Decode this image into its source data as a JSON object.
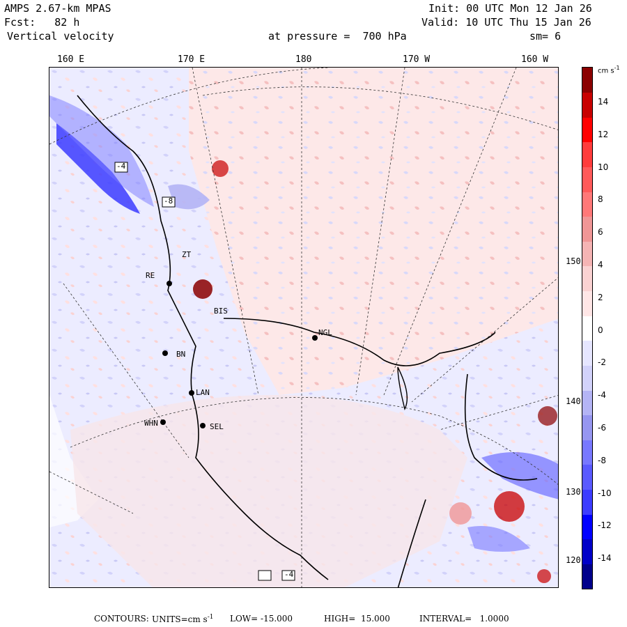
{
  "header": {
    "line1_left": "AMPS 2.67-km MPAS",
    "line2_left": "Fcst:   82 h",
    "line3_left": "Vertical velocity",
    "line1_right": "Init: 00 UTC Mon 12 Jan 26",
    "line2_right": "Valid: 10 UTC Thu 15 Jan 26",
    "pressure": "at pressure =  700 hPa",
    "smooth": "sm= 6"
  },
  "longitude_labels": [
    "160 E",
    "170 E",
    "180",
    "170 W",
    "160 W"
  ],
  "latitude_labels": [
    "150 W",
    "140 W",
    "130 W",
    "120 W"
  ],
  "stations": [
    "NGL",
    "LAN",
    "WHN",
    "SEL",
    "RE",
    "BIS",
    "ZT",
    "BN"
  ],
  "colorbar": {
    "unit_label": "cm s",
    "unit_exp": "-1",
    "tick_labels": [
      "14",
      "12",
      "10",
      "8",
      "6",
      "4",
      "2",
      "0",
      "-2",
      "-4",
      "-6",
      "-8",
      "-10",
      "-12",
      "-14"
    ],
    "colors": [
      "#00008b",
      "#0000c8",
      "#0000ff",
      "#3c3cff",
      "#5a5aff",
      "#7878ff",
      "#9696f0",
      "#b4b4f5",
      "#d2d2fa",
      "#e6e6ff",
      "#ffffff",
      "#ffe6e6",
      "#fad2d2",
      "#f5b4b4",
      "#f09696",
      "#ff7878",
      "#ff5a5a",
      "#ff3c3c",
      "#ff0000",
      "#c80000",
      "#8b0000"
    ]
  },
  "footer": {
    "contours": "CONTOURS:",
    "units_text": "UNITS=cm s",
    "units_exp": "-1",
    "low": "LOW= -15.000",
    "high": "HIGH=  15.000",
    "interval": "INTERVAL=   1.0000"
  },
  "map_labels": [
    "-4",
    "-8",
    "-4"
  ]
}
